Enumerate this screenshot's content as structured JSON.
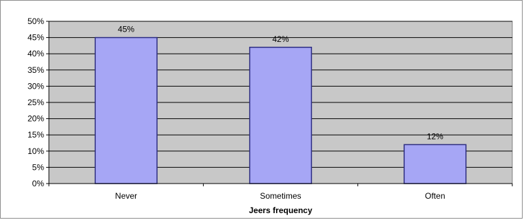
{
  "chart_data": {
    "type": "bar",
    "title": "",
    "xlabel": "Jeers frequency",
    "ylabel": "",
    "categories": [
      "Never",
      "Sometimes",
      "Often"
    ],
    "values": [
      45,
      42,
      12
    ],
    "data_labels": [
      "45%",
      "42%",
      "12%"
    ],
    "ylim": [
      0,
      50
    ],
    "y_ticks": [
      0,
      5,
      10,
      15,
      20,
      25,
      30,
      35,
      40,
      45,
      50
    ],
    "y_tick_labels": [
      "0%",
      "5%",
      "10%",
      "15%",
      "20%",
      "25%",
      "30%",
      "35%",
      "40%",
      "45%",
      "50%"
    ],
    "grid": true,
    "legend": "none",
    "colors": {
      "bar_fill": "#a6a6f5",
      "bar_stroke": "#2d2d80",
      "plot_background": "#c8c8c8",
      "gridline": "#000000"
    }
  }
}
